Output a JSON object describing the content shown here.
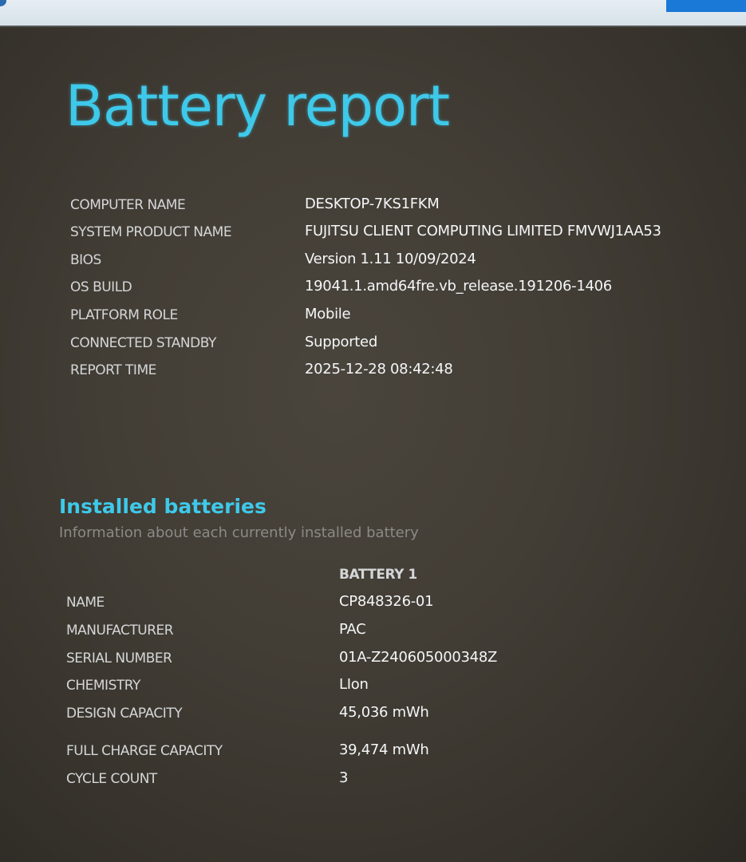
{
  "title": "Battery report",
  "system_info": [
    {
      "label": "COMPUTER NAME",
      "value": "DESKTOP-7KS1FKM"
    },
    {
      "label": "SYSTEM PRODUCT NAME",
      "value": "FUJITSU CLIENT COMPUTING LIMITED FMVWJ1AA53"
    },
    {
      "label": "BIOS",
      "value": "Version 1.11 10/09/2024"
    },
    {
      "label": "OS BUILD",
      "value": "19041.1.amd64fre.vb_release.191206-1406"
    },
    {
      "label": "PLATFORM ROLE",
      "value": "Mobile"
    },
    {
      "label": "CONNECTED STANDBY",
      "value": "Supported"
    },
    {
      "label": "REPORT TIME",
      "value": "2025-12-28  08:42:48"
    }
  ],
  "installed_batteries": {
    "heading": "Installed batteries",
    "subtitle": "Information about each currently installed battery",
    "column_header": "BATTERY 1",
    "rows": [
      {
        "label": "NAME",
        "value": "CP848326-01"
      },
      {
        "label": "MANUFACTURER",
        "value": "PAC"
      },
      {
        "label": "SERIAL NUMBER",
        "value": "01A-Z240605000348Z"
      },
      {
        "label": "CHEMISTRY",
        "value": "LIon"
      },
      {
        "label": "DESIGN CAPACITY",
        "value": "45,036 mWh"
      },
      {
        "label": "FULL CHARGE CAPACITY",
        "value": "39,474 mWh"
      },
      {
        "label": "CYCLE COUNT",
        "value": "3"
      }
    ]
  },
  "colors": {
    "accent": "#3ec9ea",
    "background": "#3d3932"
  }
}
